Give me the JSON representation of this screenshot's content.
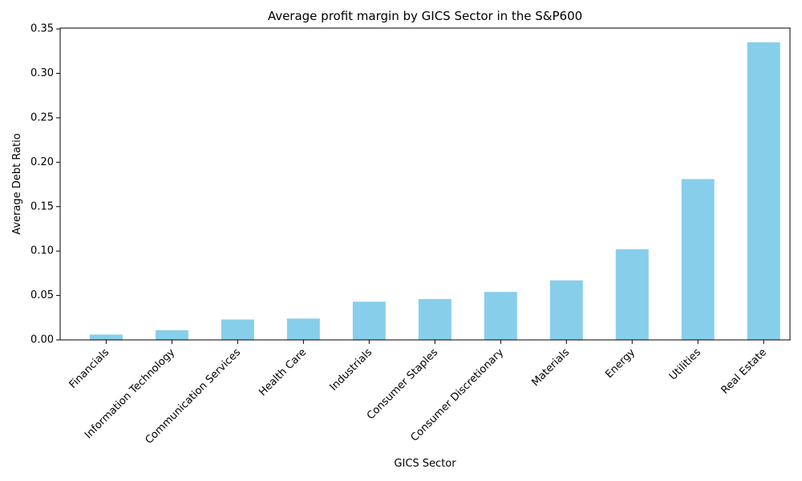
{
  "chart_data": {
    "type": "bar",
    "title": "Average profit margin by GICS Sector in the S&P600",
    "xlabel": "GICS Sector",
    "ylabel": "Average Debt Ratio",
    "categories": [
      "Financials",
      "Information Technology",
      "Communication Services",
      "Health Care",
      "Industrials",
      "Consumer Staples",
      "Consumer Discretionary",
      "Materials",
      "Energy",
      "Utilities",
      "Real Estate"
    ],
    "values": [
      0.006,
      0.011,
      0.023,
      0.024,
      0.043,
      0.046,
      0.054,
      0.067,
      0.102,
      0.181,
      0.335
    ],
    "ylim": [
      0,
      0.351
    ],
    "yticks": [
      "0.00",
      "0.05",
      "0.10",
      "0.15",
      "0.20",
      "0.25",
      "0.30",
      "0.35"
    ],
    "bar_color": "#87ceeb",
    "grid": false,
    "legend": "none"
  }
}
